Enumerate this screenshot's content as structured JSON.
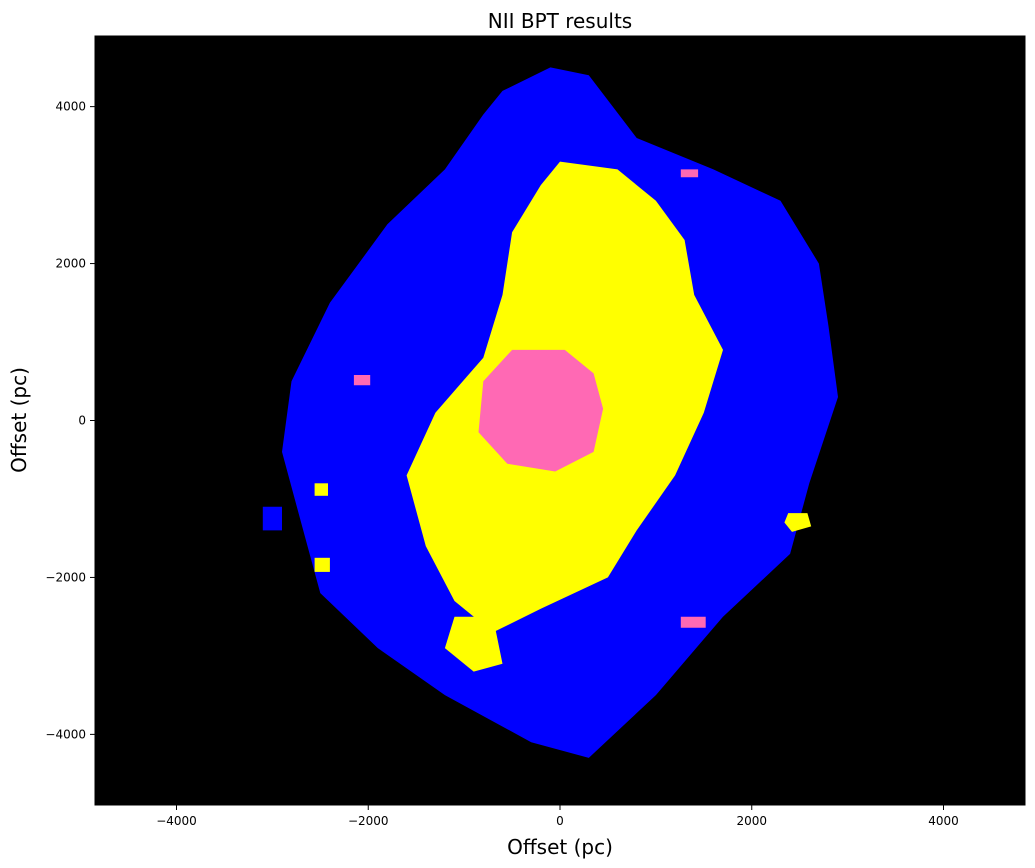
{
  "chart_data": {
    "type": "heatmap",
    "title": "NII BPT results",
    "xlabel": "Offset (pc)",
    "ylabel": "Offset (pc)",
    "xlim": [
      -4850,
      4850
    ],
    "ylim": [
      -4900,
      4900
    ],
    "xticks": [
      -4000,
      -2000,
      0,
      2000,
      4000
    ],
    "yticks": [
      -4000,
      -2000,
      0,
      2000,
      4000
    ],
    "xtick_labels": [
      "−4000",
      "−2000",
      "0",
      "2000",
      "4000"
    ],
    "ytick_labels": [
      "−4000",
      "−2000",
      "0",
      "2000",
      "4000"
    ],
    "grid": false,
    "background_color": "#000000",
    "category_colors": {
      "blue": "#0000ff",
      "yellow": "#ffff00",
      "pink": "#ff69b4"
    },
    "regions": [
      {
        "color_key": "blue",
        "polygon": [
          [
            -600,
            4200
          ],
          [
            -100,
            4500
          ],
          [
            300,
            4400
          ],
          [
            800,
            3600
          ],
          [
            1600,
            3200
          ],
          [
            2300,
            2800
          ],
          [
            2700,
            2000
          ],
          [
            2800,
            1200
          ],
          [
            2900,
            300
          ],
          [
            2600,
            -800
          ],
          [
            2400,
            -1700
          ],
          [
            1700,
            -2500
          ],
          [
            1000,
            -3500
          ],
          [
            300,
            -4300
          ],
          [
            -300,
            -4100
          ],
          [
            -1200,
            -3500
          ],
          [
            -1900,
            -2900
          ],
          [
            -2500,
            -2200
          ],
          [
            -2700,
            -1300
          ],
          [
            -2900,
            -400
          ],
          [
            -2800,
            500
          ],
          [
            -2400,
            1500
          ],
          [
            -1800,
            2500
          ],
          [
            -1200,
            3200
          ],
          [
            -800,
            3900
          ]
        ]
      },
      {
        "color_key": "blue",
        "polygon": [
          [
            -3100,
            -1100
          ],
          [
            -2900,
            -1100
          ],
          [
            -2900,
            -1400
          ],
          [
            -3100,
            -1400
          ]
        ]
      },
      {
        "color_key": "yellow",
        "polygon": [
          [
            0,
            3300
          ],
          [
            600,
            3200
          ],
          [
            1000,
            2800
          ],
          [
            1300,
            2300
          ],
          [
            1400,
            1600
          ],
          [
            1700,
            900
          ],
          [
            1500,
            100
          ],
          [
            1200,
            -700
          ],
          [
            800,
            -1400
          ],
          [
            500,
            -2000
          ],
          [
            -200,
            -2400
          ],
          [
            -700,
            -2700
          ],
          [
            -1100,
            -2300
          ],
          [
            -1400,
            -1600
          ],
          [
            -1600,
            -700
          ],
          [
            -1300,
            100
          ],
          [
            -800,
            800
          ],
          [
            -600,
            1600
          ],
          [
            -500,
            2400
          ],
          [
            -200,
            3000
          ]
        ]
      },
      {
        "color_key": "yellow",
        "polygon": [
          [
            -1100,
            -2500
          ],
          [
            -700,
            -2500
          ],
          [
            -600,
            -3100
          ],
          [
            -900,
            -3200
          ],
          [
            -1200,
            -2900
          ]
        ]
      },
      {
        "color_key": "blue",
        "polygon": [
          [
            -400,
            750
          ],
          [
            50,
            720
          ],
          [
            300,
            500
          ],
          [
            350,
            100
          ],
          [
            200,
            -300
          ],
          [
            -100,
            -450
          ],
          [
            -450,
            -350
          ],
          [
            -650,
            -50
          ],
          [
            -600,
            450
          ]
        ]
      },
      {
        "color_key": "pink",
        "polygon": [
          [
            -500,
            900
          ],
          [
            50,
            900
          ],
          [
            350,
            600
          ],
          [
            450,
            150
          ],
          [
            350,
            -400
          ],
          [
            -50,
            -650
          ],
          [
            -550,
            -550
          ],
          [
            -850,
            -150
          ],
          [
            -800,
            500
          ]
        ]
      },
      {
        "color_key": "yellow",
        "polygon": [
          [
            2380,
            -1180
          ],
          [
            2580,
            -1180
          ],
          [
            2620,
            -1350
          ],
          [
            2420,
            -1420
          ],
          [
            2340,
            -1300
          ]
        ]
      },
      {
        "color_key": "yellow",
        "polygon": [
          [
            -2560,
            -1750
          ],
          [
            -2400,
            -1750
          ],
          [
            -2400,
            -1930
          ],
          [
            -2560,
            -1930
          ]
        ]
      },
      {
        "color_key": "yellow",
        "polygon": [
          [
            -2560,
            -800
          ],
          [
            -2420,
            -800
          ],
          [
            -2420,
            -960
          ],
          [
            -2560,
            -960
          ]
        ]
      },
      {
        "color_key": "pink",
        "polygon": [
          [
            -2150,
            580
          ],
          [
            -1980,
            580
          ],
          [
            -1980,
            450
          ],
          [
            -2150,
            450
          ]
        ]
      },
      {
        "color_key": "pink",
        "polygon": [
          [
            1260,
            3200
          ],
          [
            1440,
            3200
          ],
          [
            1440,
            3100
          ],
          [
            1260,
            3100
          ]
        ]
      },
      {
        "color_key": "pink",
        "polygon": [
          [
            1260,
            -2500
          ],
          [
            1520,
            -2500
          ],
          [
            1520,
            -2640
          ],
          [
            1260,
            -2640
          ]
        ]
      }
    ]
  }
}
